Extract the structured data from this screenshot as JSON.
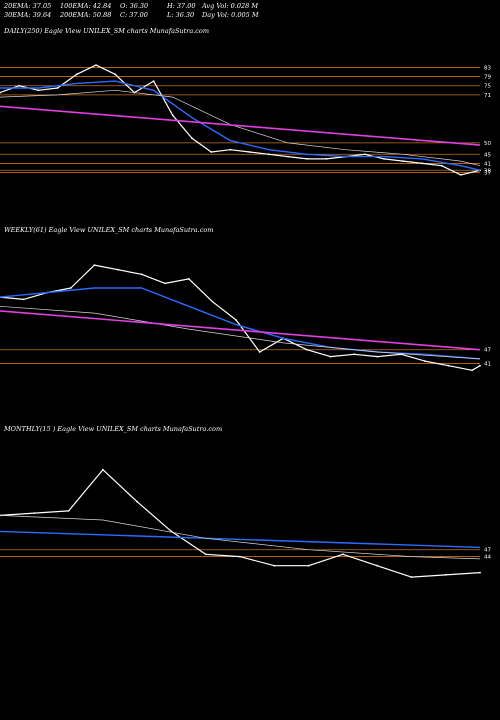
{
  "stats": {
    "ema20": "20EMA: 37.05",
    "ema100": "100EMA: 42.84",
    "open": "O: 36.30",
    "high": "H: 37.00",
    "avg_vol": "Avg Vol: 0.028 M",
    "ema30": "30EMA: 39.64",
    "ema200": "200EMA: 50.88",
    "close": "C: 37.00",
    "low": "L: 36.30",
    "day_vol": "Day Vol: 0.005 M"
  },
  "panels": {
    "daily": {
      "label": "DAILY(250) Eagle   View  UNILEX_SM charts MunafaSutra.com"
    },
    "weekly": {
      "label": "WEEKLY(61) Eagle   View  UNILEX_SM charts MunafaSutra.com"
    },
    "monthly": {
      "label": "MONTHLY(15                      ) Eagle   View  UNILEX_SM charts MunafaSutra.com"
    }
  },
  "colors": {
    "background": "#000000",
    "price": "#ffffff",
    "ema_fast": "#2b6bff",
    "ema_slow": "#d8d8d8",
    "trend": "#e040e0",
    "level": "#c87018"
  },
  "chart_data": [
    {
      "type": "line",
      "name": "daily",
      "ylim": [
        25,
        95
      ],
      "grid": false,
      "right_ticks": [
        "83",
        "79",
        "75",
        "71",
        "50",
        "45",
        "41",
        "38",
        "37"
      ],
      "levels": [
        83,
        79,
        75,
        71,
        50,
        45,
        41,
        38,
        37
      ],
      "series": [
        {
          "role": "price",
          "x": [
            0,
            10,
            20,
            30,
            40,
            50,
            60,
            70,
            80,
            90,
            100,
            110,
            120,
            130,
            140,
            150,
            160,
            170,
            180,
            190,
            200,
            210,
            220,
            230,
            240,
            250
          ],
          "values": [
            72,
            75,
            73,
            74,
            80,
            84,
            80,
            72,
            77,
            62,
            52,
            46,
            47,
            46,
            45,
            44,
            43,
            43,
            44,
            45,
            43,
            42,
            41,
            40,
            36,
            38
          ]
        },
        {
          "role": "ema_fast",
          "x": [
            0,
            20,
            40,
            60,
            80,
            100,
            120,
            140,
            160,
            180,
            200,
            220,
            240,
            250
          ],
          "values": [
            74,
            74,
            76,
            77,
            73,
            61,
            51,
            47,
            45,
            44,
            44,
            43,
            40,
            38
          ]
        },
        {
          "role": "ema_slow",
          "x": [
            0,
            30,
            60,
            90,
            120,
            150,
            180,
            210,
            240,
            250
          ],
          "values": [
            70,
            71,
            73,
            70,
            58,
            50,
            47,
            45,
            42,
            40
          ]
        },
        {
          "role": "trend",
          "x": [
            0,
            250
          ],
          "values": [
            66,
            49
          ]
        }
      ]
    },
    {
      "type": "line",
      "name": "weekly",
      "ylim": [
        25,
        95
      ],
      "grid": false,
      "right_ticks": [
        "47",
        "41"
      ],
      "levels": [
        47,
        41
      ],
      "series": [
        {
          "role": "price",
          "x": [
            0,
            3,
            6,
            9,
            12,
            15,
            18,
            21,
            24,
            27,
            30,
            33,
            36,
            39,
            42,
            45,
            48,
            51,
            54,
            57,
            60,
            61
          ],
          "values": [
            70,
            69,
            72,
            74,
            84,
            82,
            80,
            76,
            78,
            68,
            60,
            46,
            52,
            47,
            44,
            45,
            44,
            45,
            42,
            40,
            38,
            40
          ]
        },
        {
          "role": "ema_fast",
          "x": [
            0,
            6,
            12,
            18,
            24,
            30,
            36,
            42,
            48,
            54,
            61
          ],
          "values": [
            70,
            72,
            74,
            74,
            66,
            58,
            52,
            48,
            46,
            45,
            43
          ]
        },
        {
          "role": "ema_slow",
          "x": [
            0,
            12,
            24,
            36,
            48,
            61
          ],
          "values": [
            66,
            63,
            56,
            50,
            46,
            43
          ]
        },
        {
          "role": "trend",
          "x": [
            0,
            61
          ],
          "values": [
            64,
            47
          ]
        }
      ]
    },
    {
      "type": "line",
      "name": "monthly",
      "ylim": [
        25,
        95
      ],
      "grid": false,
      "right_ticks": [
        "47",
        "44"
      ],
      "levels": [
        47,
        44
      ],
      "series": [
        {
          "role": "price",
          "x": [
            0,
            1,
            2,
            3,
            4,
            5,
            6,
            7,
            8,
            9,
            10,
            11,
            12,
            13,
            14
          ],
          "values": [
            62,
            63,
            64,
            82,
            68,
            55,
            45,
            44,
            40,
            40,
            45,
            40,
            35,
            36,
            37
          ]
        },
        {
          "role": "ema_fast",
          "x": [
            0,
            14
          ],
          "values": [
            55,
            48
          ]
        },
        {
          "role": "ema_slow",
          "x": [
            0,
            3,
            6,
            9,
            12,
            14
          ],
          "values": [
            62,
            60,
            52,
            47,
            44,
            43
          ]
        }
      ]
    }
  ]
}
